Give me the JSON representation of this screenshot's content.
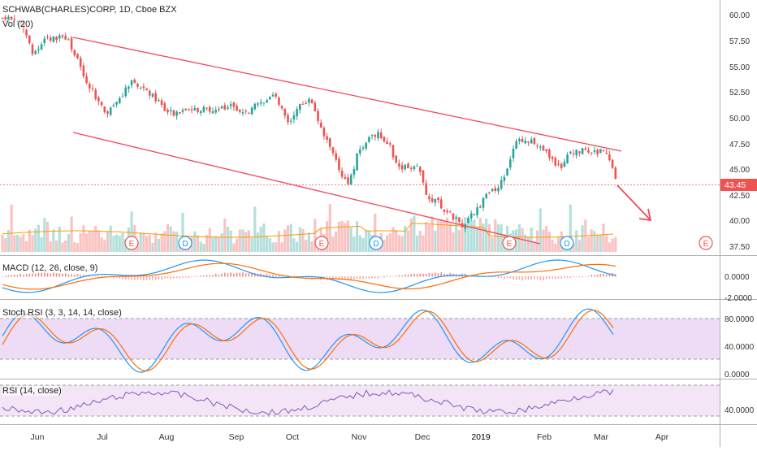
{
  "header": {
    "symbol_line": "SCHWAB(CHARLES)CORP, 1D, Cboe BZX",
    "vol_label": "Vol (20)"
  },
  "price_axis": {
    "ticks": [
      "60.00",
      "57.50",
      "55.00",
      "52.50",
      "50.00",
      "47.50",
      "45.00",
      "42.50",
      "40.00",
      "37.50"
    ],
    "last_price": "43.45",
    "last_price_color": "#ef5350"
  },
  "macd": {
    "label": "MACD (12, 26, close, 9)",
    "ticks": [
      "0.0000",
      "-2.0000"
    ]
  },
  "stoch": {
    "label": "Stoch RSI (3, 3, 14, 14, close)",
    "ticks": [
      "80.0000",
      "40.0000",
      "0.0000"
    ]
  },
  "rsi": {
    "label": "RSI (14, close)",
    "ticks": [
      "40.0000"
    ]
  },
  "time_axis": {
    "labels": [
      "Jun",
      "Jul",
      "Aug",
      "Sep",
      "Oct",
      "Nov",
      "Dec",
      "2019",
      "Feb",
      "Mar",
      "Apr"
    ]
  },
  "events": [
    "E",
    "D",
    "E",
    "D",
    "E",
    "D",
    "E"
  ],
  "colors": {
    "up": "#26a69a",
    "down": "#ef5350",
    "trend": "#f0495f",
    "macd_line": "#2196f3",
    "signal_line": "#ff6d00",
    "stoch_band": "#e1bee7",
    "rsi_band": "#f3e5f5",
    "rsi_line": "#7e57c2"
  }
}
